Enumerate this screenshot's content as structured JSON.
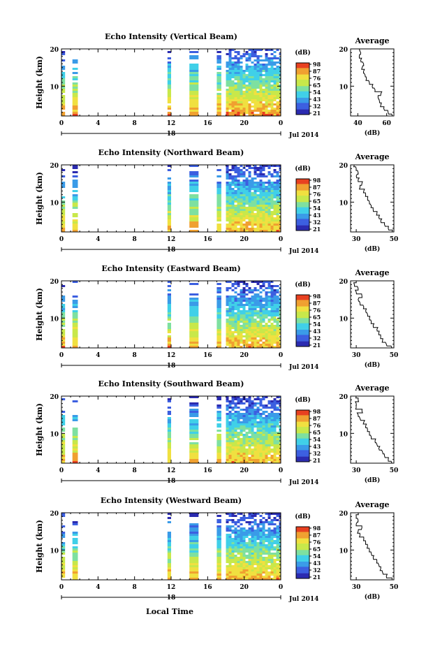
{
  "chart_data": [
    {
      "type": "heatmap",
      "title": "Echo Intensity (Vertical Beam)",
      "ylabel": "Height (km)",
      "x_ticks": [
        "0",
        "4",
        "8",
        "12",
        "16",
        "20",
        "0"
      ],
      "y_ticks": [
        "20",
        "10"
      ],
      "xlim": [
        0,
        24
      ],
      "ylim": [
        2,
        20
      ],
      "date_marker": "18",
      "date_label": "Jul 2014",
      "colorbar_unit": "(dB)",
      "colorbar_ticks": [
        "98",
        "87",
        "76",
        "65",
        "54",
        "43",
        "32",
        "21"
      ],
      "average_title": "Average",
      "average_xlabel": "(dB)",
      "average_x_ticks": [
        "40",
        "60"
      ],
      "average_xlim": [
        35,
        65
      ],
      "average_y_ticks": [
        "20",
        "10"
      ],
      "average_profile": [
        [
          64,
          2
        ],
        [
          61,
          3
        ],
        [
          58,
          4
        ],
        [
          56,
          5
        ],
        [
          55,
          6
        ],
        [
          54,
          7
        ],
        [
          56,
          8
        ],
        [
          52,
          9
        ],
        [
          50,
          10
        ],
        [
          48,
          11
        ],
        [
          46,
          12
        ],
        [
          45,
          13
        ],
        [
          44,
          14
        ],
        [
          43,
          15
        ],
        [
          44,
          16
        ],
        [
          42,
          17
        ],
        [
          41,
          18
        ],
        [
          42,
          19
        ],
        [
          41,
          20
        ]
      ]
    },
    {
      "type": "heatmap",
      "title": "Echo Intensity (Northward Beam)",
      "ylabel": "Height (km)",
      "x_ticks": [
        "0",
        "4",
        "8",
        "12",
        "16",
        "20",
        "0"
      ],
      "y_ticks": [
        "20",
        "10"
      ],
      "xlim": [
        0,
        24
      ],
      "ylim": [
        2,
        20
      ],
      "date_marker": "18",
      "date_label": "Jul 2014",
      "colorbar_unit": "(dB)",
      "colorbar_ticks": [
        "98",
        "87",
        "76",
        "65",
        "54",
        "43",
        "32",
        "21"
      ],
      "average_title": "Average",
      "average_xlabel": "(dB)",
      "average_x_ticks": [
        "30",
        "50"
      ],
      "average_xlim": [
        27,
        50
      ],
      "average_y_ticks": [
        "20",
        "10"
      ],
      "average_profile": [
        [
          49,
          2
        ],
        [
          47,
          3
        ],
        [
          45,
          4
        ],
        [
          43,
          5
        ],
        [
          42,
          6
        ],
        [
          41,
          7
        ],
        [
          39,
          8
        ],
        [
          38,
          9
        ],
        [
          37,
          10
        ],
        [
          36,
          11
        ],
        [
          35,
          12
        ],
        [
          34,
          13
        ],
        [
          32,
          14
        ],
        [
          33,
          15
        ],
        [
          31,
          16
        ],
        [
          30,
          17
        ],
        [
          31,
          18
        ],
        [
          30,
          19
        ],
        [
          29,
          20
        ]
      ]
    },
    {
      "type": "heatmap",
      "title": "Echo Intensity (Eastward Beam)",
      "ylabel": "Height (km)",
      "x_ticks": [
        "0",
        "4",
        "8",
        "12",
        "16",
        "20",
        "0"
      ],
      "y_ticks": [
        "20",
        "10"
      ],
      "xlim": [
        0,
        24
      ],
      "ylim": [
        2,
        20
      ],
      "date_marker": "18",
      "date_label": "Jul 2014",
      "colorbar_unit": "(dB)",
      "colorbar_ticks": [
        "98",
        "87",
        "76",
        "65",
        "54",
        "43",
        "32",
        "21"
      ],
      "average_title": "Average",
      "average_xlabel": "(dB)",
      "average_x_ticks": [
        "30",
        "50"
      ],
      "average_xlim": [
        27,
        50
      ],
      "average_y_ticks": [
        "20",
        "10"
      ],
      "average_profile": [
        [
          49,
          2
        ],
        [
          46,
          3
        ],
        [
          44,
          4
        ],
        [
          43,
          5
        ],
        [
          42,
          6
        ],
        [
          41,
          7
        ],
        [
          39,
          8
        ],
        [
          38,
          9
        ],
        [
          37,
          10
        ],
        [
          36,
          11
        ],
        [
          35,
          12
        ],
        [
          34,
          13
        ],
        [
          32,
          14
        ],
        [
          31,
          15
        ],
        [
          33,
          16
        ],
        [
          30,
          17
        ],
        [
          31,
          18
        ],
        [
          29,
          19
        ],
        [
          30,
          20
        ]
      ]
    },
    {
      "type": "heatmap",
      "title": "Echo Intensity (Southward Beam)",
      "ylabel": "Height (km)",
      "x_ticks": [
        "0",
        "4",
        "8",
        "12",
        "16",
        "20",
        "0"
      ],
      "y_ticks": [
        "20",
        "10"
      ],
      "xlim": [
        0,
        24
      ],
      "ylim": [
        2,
        20
      ],
      "date_marker": "18",
      "date_label": "Jul 2014",
      "colorbar_unit": "(dB)",
      "colorbar_ticks": [
        "98",
        "87",
        "76",
        "65",
        "54",
        "43",
        "32",
        "21"
      ],
      "average_title": "Average",
      "average_xlabel": "(dB)",
      "average_x_ticks": [
        "30",
        "50"
      ],
      "average_xlim": [
        27,
        50
      ],
      "average_y_ticks": [
        "20",
        "10"
      ],
      "average_profile": [
        [
          49,
          2
        ],
        [
          47,
          3
        ],
        [
          45,
          4
        ],
        [
          44,
          5
        ],
        [
          42,
          6
        ],
        [
          41,
          7
        ],
        [
          40,
          8
        ],
        [
          38,
          9
        ],
        [
          37,
          10
        ],
        [
          36,
          11
        ],
        [
          35,
          12
        ],
        [
          34,
          13
        ],
        [
          32,
          14
        ],
        [
          31,
          15
        ],
        [
          33,
          16
        ],
        [
          30,
          17
        ],
        [
          30,
          18
        ],
        [
          31,
          19
        ],
        [
          30,
          20
        ]
      ]
    },
    {
      "type": "heatmap",
      "title": "Echo Intensity (Westward Beam)",
      "ylabel": "Height (km)",
      "x_ticks": [
        "0",
        "4",
        "8",
        "12",
        "16",
        "20",
        "0"
      ],
      "y_ticks": [
        "20",
        "10"
      ],
      "xlim": [
        0,
        24
      ],
      "ylim": [
        2,
        20
      ],
      "date_marker": "18",
      "date_label": "Jul 2014",
      "colorbar_unit": "(dB)",
      "colorbar_ticks": [
        "98",
        "87",
        "76",
        "65",
        "54",
        "43",
        "32",
        "21"
      ],
      "average_title": "Average",
      "average_xlabel": "(dB)",
      "average_x_ticks": [
        "30",
        "50"
      ],
      "average_xlim": [
        27,
        50
      ],
      "average_y_ticks": [
        "20",
        "10"
      ],
      "average_profile": [
        [
          49,
          2
        ],
        [
          46,
          3
        ],
        [
          44,
          4
        ],
        [
          43,
          5
        ],
        [
          42,
          6
        ],
        [
          41,
          7
        ],
        [
          39,
          8
        ],
        [
          38,
          9
        ],
        [
          37,
          10
        ],
        [
          36,
          11
        ],
        [
          35,
          12
        ],
        [
          34,
          13
        ],
        [
          32,
          14
        ],
        [
          31,
          15
        ],
        [
          33,
          16
        ],
        [
          30,
          17
        ],
        [
          31,
          18
        ],
        [
          30,
          19
        ],
        [
          31,
          20
        ]
      ]
    }
  ],
  "xlabel": "Local Time",
  "data_columns_hours": [
    [
      0.0,
      0.4
    ],
    [
      1.2,
      1.8
    ],
    [
      11.6,
      12.0
    ],
    [
      14.0,
      15.0
    ],
    [
      17.0,
      17.5
    ],
    [
      18.0,
      24.0
    ]
  ],
  "colormap": [
    "#2b2bb0",
    "#3c5fe0",
    "#3a9be8",
    "#40d0e8",
    "#7ee0a0",
    "#c8e84a",
    "#f0e040",
    "#f0a030",
    "#e84020"
  ]
}
